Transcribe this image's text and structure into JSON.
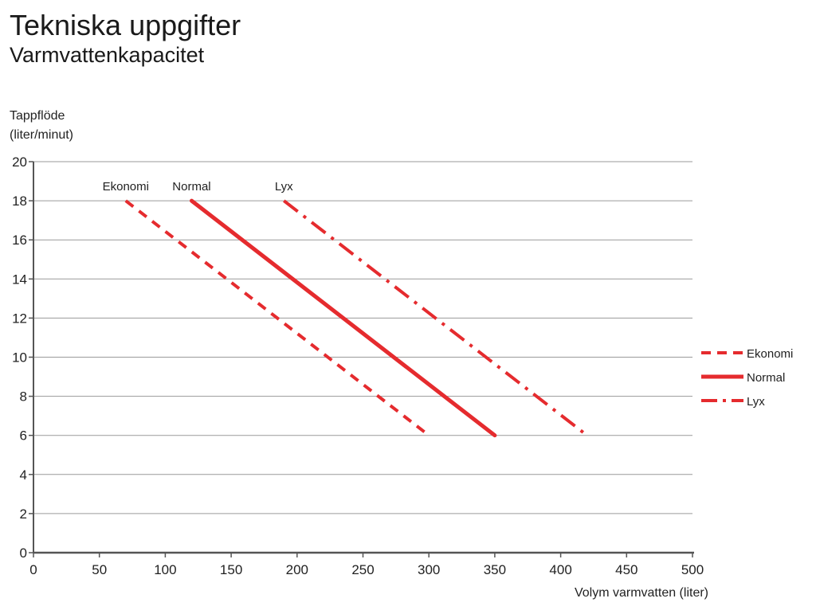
{
  "page": {
    "title": "Tekniska uppgifter",
    "subtitle": "Varmvattenkapacitet"
  },
  "colors": {
    "series": "#e52b2e",
    "grid": "#9a9a9a",
    "axis": "#555555"
  },
  "chart_data": {
    "type": "line",
    "title": "Varmvattenkapacitet",
    "xlabel": "Volym varmvatten (liter)",
    "ylabel_lines": [
      "Tappflöde",
      "(liter/minut)"
    ],
    "xlim": [
      0,
      500
    ],
    "ylim": [
      0,
      20
    ],
    "xticks": [
      0,
      50,
      100,
      150,
      200,
      250,
      300,
      350,
      400,
      450,
      500
    ],
    "yticks": [
      0,
      2,
      4,
      6,
      8,
      10,
      12,
      14,
      16,
      18,
      20
    ],
    "grid": "horizontal",
    "legend_position": "right",
    "series": [
      {
        "name": "Ekonomi",
        "style": "dashed",
        "x": [
          70,
          300
        ],
        "y": [
          18,
          6
        ]
      },
      {
        "name": "Normal",
        "style": "solid",
        "x": [
          120,
          350
        ],
        "y": [
          18,
          6
        ]
      },
      {
        "name": "Lyx",
        "style": "dash-dot",
        "x": [
          190,
          420
        ],
        "y": [
          18,
          6
        ]
      }
    ]
  }
}
